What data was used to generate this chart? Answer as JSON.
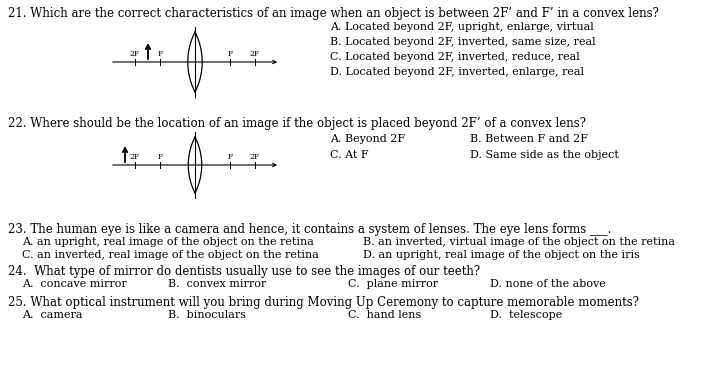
{
  "bg_color": "#ffffff",
  "text_color": "#000000",
  "font_size_q": 8.5,
  "font_size_c": 8.0,
  "q21": "21. Which are the correct characteristics of an image when an object is between 2F’ and F’ in a convex lens?",
  "q21_choices": [
    "A. Located beyond 2F, upright, enlarge, virtual",
    "B. Located beyond 2F, inverted, same size, real",
    "C. Located beyond 2F, inverted, reduce, real",
    "D. Located beyond 2F, inverted, enlarge, real"
  ],
  "q22": "22. Where should be the location of an image if the object is placed beyond 2F’ of a convex lens?",
  "q22_choices_row1": [
    "A. Beyond 2F",
    "B. Between F and 2F"
  ],
  "q22_choices_row2": [
    "C. At F",
    "D. Same side as the object"
  ],
  "q23": "23. The human eye is like a camera and hence, it contains a system of lenses. The eye lens forms ___.",
  "q23_choices_row1": [
    "A. an upright, real image of the object on the retina",
    "B. an inverted, virtual image of the object on the retina"
  ],
  "q23_choices_row2": [
    "C. an inverted, real image of the object on the retina",
    "D. an upright, real image of the object on the iris"
  ],
  "q24": "24.  What type of mirror do dentists usually use to see the images of our teeth?",
  "q24_choices": [
    "A.  concave mirror",
    "B.  convex mirror",
    "C.  plane mirror",
    "D. none of the above"
  ],
  "q25": "25. What optical instrument will you bring during Moving Up Ceremony to capture memorable moments?",
  "q25_choices": [
    "A.  camera",
    "B.  binoculars",
    "C.  hand lens",
    "D.  telescope"
  ]
}
